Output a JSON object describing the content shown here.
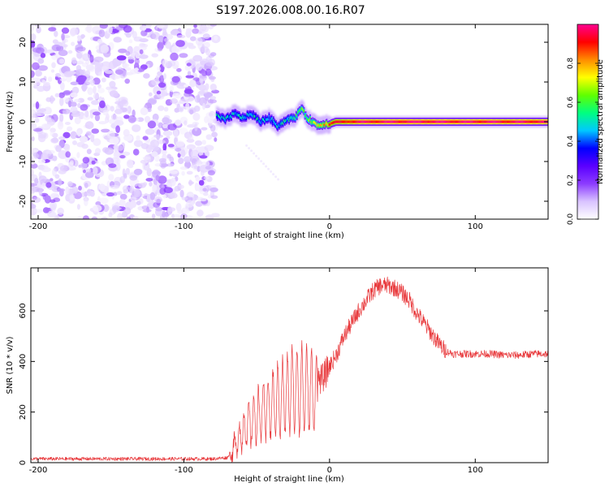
{
  "title": "S197.2026.008.00.16.R07",
  "colors": {
    "snr_line": "#e8383b",
    "axis": "#000000",
    "background": "#ffffff"
  },
  "chart_data": [
    {
      "type": "heatmap",
      "xlabel": "Height of straight line (km)",
      "ylabel": "Frequency (Hz)",
      "xlim": [
        -205,
        150
      ],
      "ylim": [
        -24.5,
        24.5
      ],
      "xticks": [
        -200,
        -100,
        0,
        100
      ],
      "yticks": [
        -20,
        -10,
        0,
        10,
        20
      ],
      "colorbar": {
        "label": "Normalized spectral amplitude",
        "range": [
          0.0,
          1.0
        ],
        "ticks": [
          "0.0",
          "0.2",
          "0.4",
          "0.6",
          "0.8"
        ],
        "stops": [
          "#ffffff",
          "#d9c3ff",
          "#8c3cff",
          "#5a00ff",
          "#0000ff",
          "#00c8ff",
          "#00ff80",
          "#60ff00",
          "#ffff00",
          "#ff8c00",
          "#ff0000",
          "#ff0090"
        ]
      },
      "noise_region_x": [
        -205,
        -78
      ],
      "signal_track": {
        "x": [
          -78,
          -72,
          -66,
          -60,
          -54,
          -48,
          -42,
          -36,
          -30,
          -24,
          -20,
          -16,
          -12,
          -8,
          -4,
          0,
          4,
          10,
          20,
          40,
          60,
          80,
          100,
          120,
          150
        ],
        "freq": [
          1.5,
          0.5,
          2.0,
          1.0,
          2.0,
          0.0,
          1.0,
          -1.0,
          0.5,
          1.0,
          3.5,
          1.0,
          0.0,
          -1.0,
          -0.5,
          -0.5,
          0.0,
          0.0,
          0.0,
          0.0,
          0.0,
          0.0,
          0.0,
          0.0,
          0.0
        ],
        "amplitude": [
          0.45,
          0.5,
          0.45,
          0.5,
          0.45,
          0.5,
          0.45,
          0.5,
          0.5,
          0.55,
          0.6,
          0.6,
          0.65,
          0.7,
          0.75,
          0.85,
          0.9,
          0.92,
          0.95,
          0.97,
          0.98,
          0.97,
          0.97,
          0.96,
          0.96
        ]
      }
    },
    {
      "type": "line",
      "xlabel": "Height of straight line (km)",
      "ylabel": "SNR (10 * v/v)",
      "xlim": [
        -205,
        150
      ],
      "ylim": [
        0,
        770
      ],
      "xticks": [
        -200,
        -100,
        0,
        100
      ],
      "yticks": [
        0,
        200,
        400,
        600
      ],
      "series": [
        {
          "name": "SNR",
          "x": [
            -205,
            -150,
            -100,
            -80,
            -70,
            -65,
            -60,
            -55,
            -50,
            -45,
            -40,
            -35,
            -30,
            -25,
            -20,
            -15,
            -10,
            -5,
            0,
            5,
            10,
            15,
            20,
            25,
            30,
            35,
            40,
            45,
            50,
            55,
            60,
            65,
            70,
            75,
            80,
            85,
            90,
            100,
            110,
            120,
            130,
            140,
            150
          ],
          "y": [
            15,
            15,
            15,
            15,
            20,
            80,
            150,
            180,
            220,
            250,
            270,
            300,
            320,
            350,
            350,
            350,
            330,
            330,
            380,
            430,
            500,
            550,
            600,
            640,
            680,
            700,
            700,
            690,
            670,
            640,
            590,
            550,
            510,
            470,
            440,
            430,
            430,
            430,
            430,
            425,
            425,
            430,
            430
          ]
        }
      ]
    }
  ]
}
